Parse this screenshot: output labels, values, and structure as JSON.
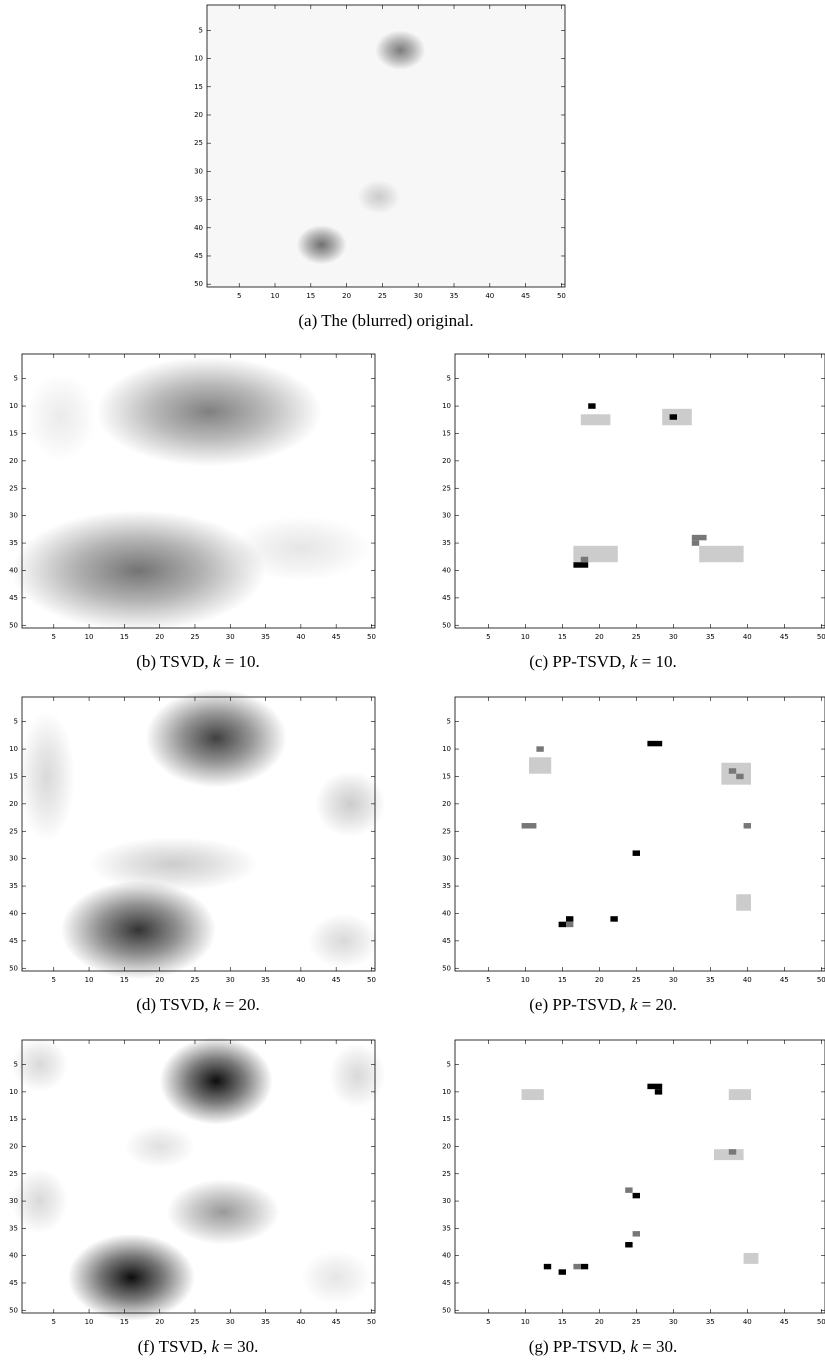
{
  "figure": {
    "panels": [
      {
        "caption": "(a) The (blurred) original."
      },
      {
        "caption": "(b) TSVD,",
        "param": "k",
        "param_text": "= 10."
      },
      {
        "caption": "(c) PP-TSVD,",
        "param": "k",
        "param_text": "= 10."
      },
      {
        "caption": "(d) TSVD,",
        "param": "k",
        "param_text": "= 20."
      },
      {
        "caption": "(e) PP-TSVD,",
        "param": "k",
        "param_text": "= 20."
      },
      {
        "caption": "(f) TSVD,",
        "param": "k",
        "param_text": "= 30."
      },
      {
        "caption": "(g) PP-TSVD,",
        "param": "k",
        "param_text": "= 30."
      }
    ],
    "axes": {
      "xlim": [
        0.5,
        50.5
      ],
      "ylim": [
        0.5,
        50.5
      ],
      "xticks": [
        5,
        10,
        15,
        20,
        25,
        30,
        35,
        40,
        45,
        50
      ],
      "yticks": [
        5,
        10,
        15,
        20,
        25,
        30,
        35,
        40,
        45,
        50
      ]
    }
  }
}
